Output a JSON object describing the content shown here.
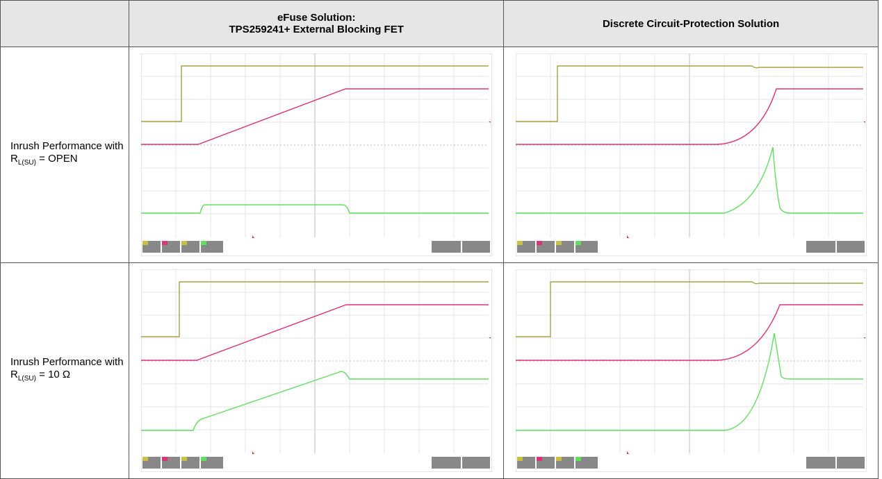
{
  "table": {
    "headers": [
      "",
      "eFuse Solution:\nTPS259241+ External Blocking FET",
      "Discrete Circuit-Protection Solution"
    ],
    "rows": [
      {
        "label": {
          "text": "Inrush Performance with R",
          "sub": "L(SU)",
          "after": " = OPEN"
        }
      },
      {
        "label": {
          "text": "Inrush Performance with R",
          "sub": "L(SU)",
          "after": " = 10 Ω"
        }
      }
    ]
  }
}
